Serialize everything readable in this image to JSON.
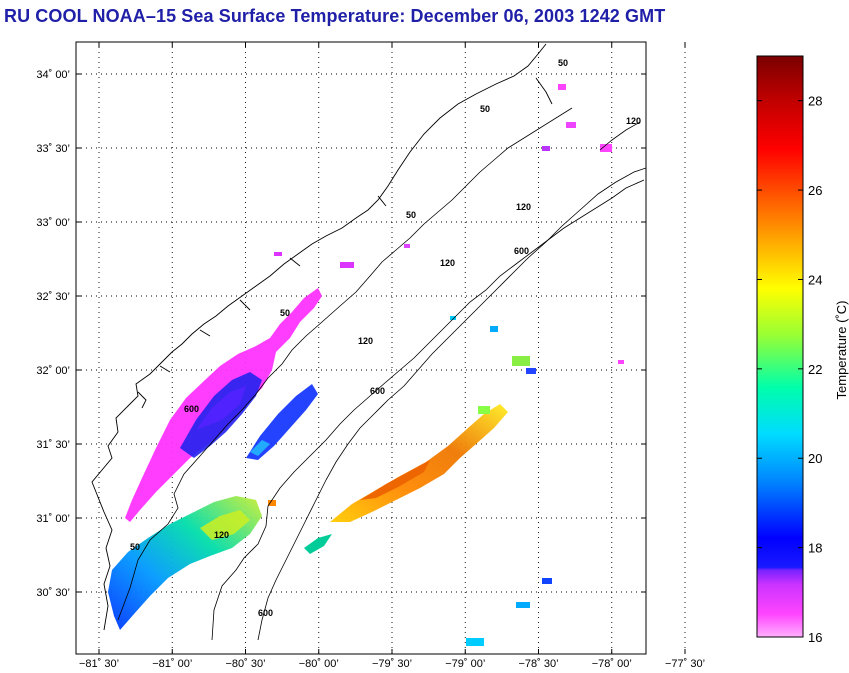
{
  "title": "RU COOL  NOAA–15  Sea Surface Temperature:  December 06, 2003 1242 GMT",
  "map": {
    "lat_ticks": [
      {
        "value": 34.0,
        "label": "34˚ 00’"
      },
      {
        "value": 33.5,
        "label": "33˚ 30’"
      },
      {
        "value": 33.0,
        "label": "33˚ 00’"
      },
      {
        "value": 32.5,
        "label": "32˚ 30’"
      },
      {
        "value": 32.0,
        "label": "32˚ 00’"
      },
      {
        "value": 31.5,
        "label": "31˚ 30’"
      },
      {
        "value": 31.0,
        "label": "31˚ 00’"
      },
      {
        "value": 30.5,
        "label": "30˚ 30’"
      }
    ],
    "lon_ticks": [
      {
        "value": -81.5,
        "label": "−81˚ 30’"
      },
      {
        "value": -81.0,
        "label": "−81˚ 00’"
      },
      {
        "value": -80.5,
        "label": "−80˚ 30’"
      },
      {
        "value": -80.0,
        "label": "−80˚ 00’"
      },
      {
        "value": -79.5,
        "label": "−79˚ 30’"
      },
      {
        "value": -79.0,
        "label": "−79˚ 00’"
      },
      {
        "value": -78.5,
        "label": "−78˚ 30’"
      },
      {
        "value": -78.0,
        "label": "−78˚ 00’"
      },
      {
        "value": -77.5,
        "label": "−77˚ 30’"
      }
    ],
    "isobath_labels": [
      "50",
      "50",
      "120",
      "50",
      "120",
      "600",
      "120",
      "50",
      "120",
      "600",
      "600",
      "120",
      "50",
      "600"
    ]
  },
  "colorbar": {
    "label": "Temperature (˚C)",
    "min": 16,
    "max": 29,
    "ticks": [
      16,
      18,
      20,
      22,
      24,
      26,
      28
    ],
    "colors": [
      "#ffb0ff",
      "#ff44ff",
      "#bb22ff",
      "#2244ff",
      "#0000ff",
      "#0088ff",
      "#00d8ff",
      "#00ffaa",
      "#88ff44",
      "#ffff00",
      "#ffaa00",
      "#ff5500",
      "#ff0000",
      "#aa0000",
      "#7a0000"
    ]
  }
}
